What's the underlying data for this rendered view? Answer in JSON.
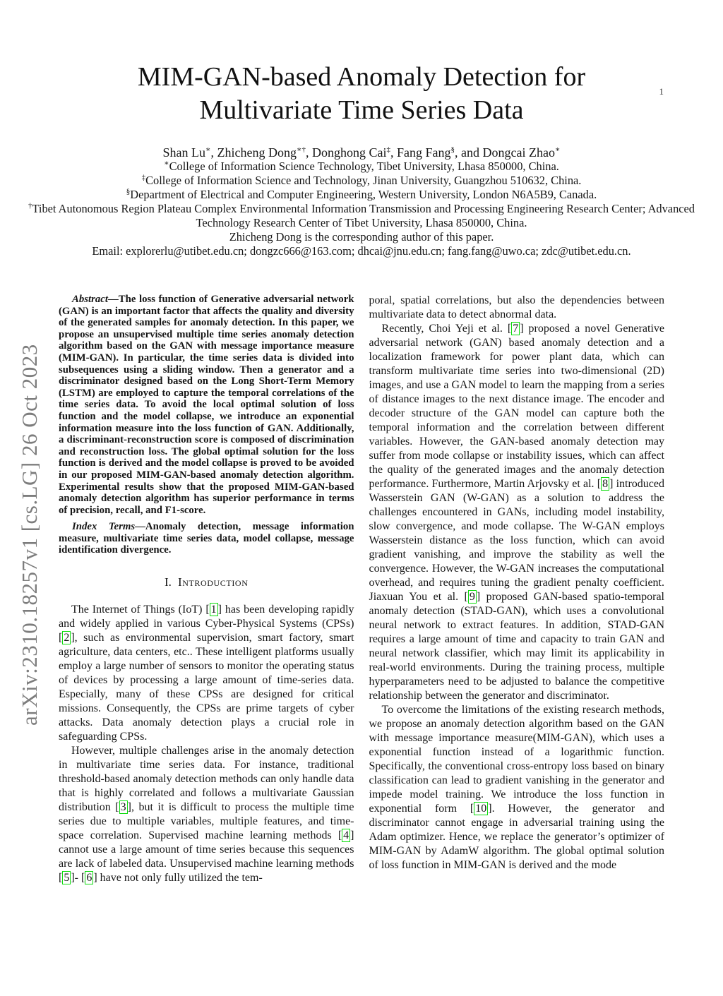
{
  "page": {
    "number": "1"
  },
  "watermark": "arXiv:2310.18257v1  [cs.LG]  26 Oct 2023",
  "header": {
    "title": "MIM-GAN-based Anomaly Detection for Multivariate Time Series Data",
    "authors": [
      {
        "name": "Shan Lu",
        "sup": "∗",
        "sep": ", "
      },
      {
        "name": "Zhicheng Dong",
        "sup": "∗†",
        "sep": ", "
      },
      {
        "name": "Donghong Cai",
        "sup": "‡",
        "sep": ", "
      },
      {
        "name": "Fang Fang",
        "sup": "§",
        "sep": ", and "
      },
      {
        "name": "Dongcai Zhao",
        "sup": "∗",
        "sep": ""
      }
    ],
    "affiliations": [
      {
        "sup": "∗",
        "text": "College of Information Science Technology, Tibet University, Lhasa 850000, China."
      },
      {
        "sup": "‡",
        "text": "College of Information Science and Technology, Jinan University, Guangzhou 510632, China."
      },
      {
        "sup": "§",
        "text": "Department of Electrical and Computer Engineering, Western University, London N6A5B9, Canada."
      },
      {
        "sup": "†",
        "text": "Tibet Autonomous Region Plateau Complex Environmental Information Transmission and Processing Engineering Research Center; Advanced Technology Research Center of Tibet University, Lhasa 850000, China."
      }
    ],
    "corresponding": "Zhicheng Dong is the corresponding author of this paper.",
    "email": "Email: explorerlu@utibet.edu.cn; dongzc666@163.com; dhcai@jnu.edu.cn; fang.fang@uwo.ca; zdc@utibet.edu.cn."
  },
  "abstract": {
    "label": "Abstract",
    "text": "—The loss function of Generative adversarial network (GAN) is an important factor that affects the quality and diversity of the generated samples for anomaly detection. In this paper, we propose an unsupervised multiple time series anomaly detection algorithm based on the GAN with message importance measure (MIM-GAN). In particular, the time series data is divided into subsequences using a sliding window. Then a generator and a discriminator designed based on the Long Short-Term Memory (LSTM) are employed to capture the temporal correlations of the time series data. To avoid the local optimal solution of loss function and the model collapse, we introduce an exponential information measure into the loss function of GAN. Additionally, a discriminant-reconstruction score is composed of discrimination and reconstruction loss. The global optimal solution for the loss function is derived and the model collapse is proved to be avoided in our proposed MIM-GAN-based anomaly detection algorithm. Experimental results show that the proposed MIM-GAN-based anomaly detection algorithm has superior performance in terms of precision, recall, and F1-score."
  },
  "index_terms": {
    "label": "Index Terms",
    "text": "—Anomaly detection, message information measure, multivariate time series data, model collapse, message identification divergence."
  },
  "section1": {
    "number": "I.",
    "title": "Introduction"
  },
  "columns": {
    "left": [
      "The Internet of Things (IoT) [1] has been developing rapidly and widely applied in various Cyber-Physical Systems (CPSs) [2], such as environmental supervision, smart factory, smart agriculture, data centers, etc.. These intelligent platforms usually employ a large number of sensors to monitor the operating status of devices by processing a large amount of time-series data. Especially, many of these CPSs are designed for critical missions. Consequently, the CPSs are prime targets of cyber attacks. Data anomaly detection plays a crucial role in safeguarding CPSs.",
      "However, multiple challenges arise in the anomaly detection in multivariate time series data. For instance, traditional threshold-based anomaly detection methods can only handle data that is highly correlated and follows a multivariate Gaussian distribution [3], but it is difficult to process the multiple time series due to multiple variables, multiple features, and time-space correlation. Supervised machine learning methods [4] cannot use a large amount of time series because this sequences are lack of labeled data. Unsupervised machine learning methods [5]- [6] have not only fully utilized the tem-"
    ],
    "right": [
      "poral, spatial correlations, but also the dependencies between multivariate data to detect abnormal data.",
      "Recently, Choi Yeji et al. [7] proposed a novel Generative adversarial network (GAN) based anomaly detection and a localization framework for power plant data, which can transform multivariate time series into two-dimensional (2D) images, and use a GAN model to learn the mapping from a series of distance images to the next distance image. The encoder and decoder structure of the GAN model can capture both the temporal information and the correlation between different variables. However, the GAN-based anomaly detection may suffer from mode collapse or instability issues, which can affect the quality of the generated images and the anomaly detection performance. Furthermore, Martin Arjovsky et al. [8] introduced Wasserstein GAN (W-GAN) as a solution to address the challenges encountered in GANs, including model instability, slow convergence, and mode collapse. The W-GAN employs Wasserstein distance as the loss function, which can avoid gradient vanishing, and improve the stability as well the convergence. However, the W-GAN increases the computational overhead, and requires tuning the gradient penalty coefficient. Jiaxuan You et al. [9] proposed GAN-based spatio-temporal anomaly detection (STAD-GAN), which uses a convolutional neural network to extract features. In addition, STAD-GAN requires a large amount of time and capacity to train GAN and neural network classifier, which may limit its applicability in real-world environments. During the training process, multiple hyperparameters need to be adjusted to balance the competitive relationship between the generator and discriminator.",
      "To overcome the limitations of the existing research methods, we propose an anomaly detection algorithm based on the GAN with message importance measure(MIM-GAN), which uses a exponential function instead of a logarithmic function. Specifically, the conventional cross-entropy loss based on binary classification can lead to gradient vanishing in the generator and impede model training. We introduce the loss function in exponential form [10]. However, the generator and discriminator cannot engage in adversarial training using the Adam optimizer. Hence, we replace the generator’s optimizer of MIM-GAN by AdamW algorithm. The global optimal solution of loss function in MIM-GAN is derived and the mode"
    ]
  }
}
